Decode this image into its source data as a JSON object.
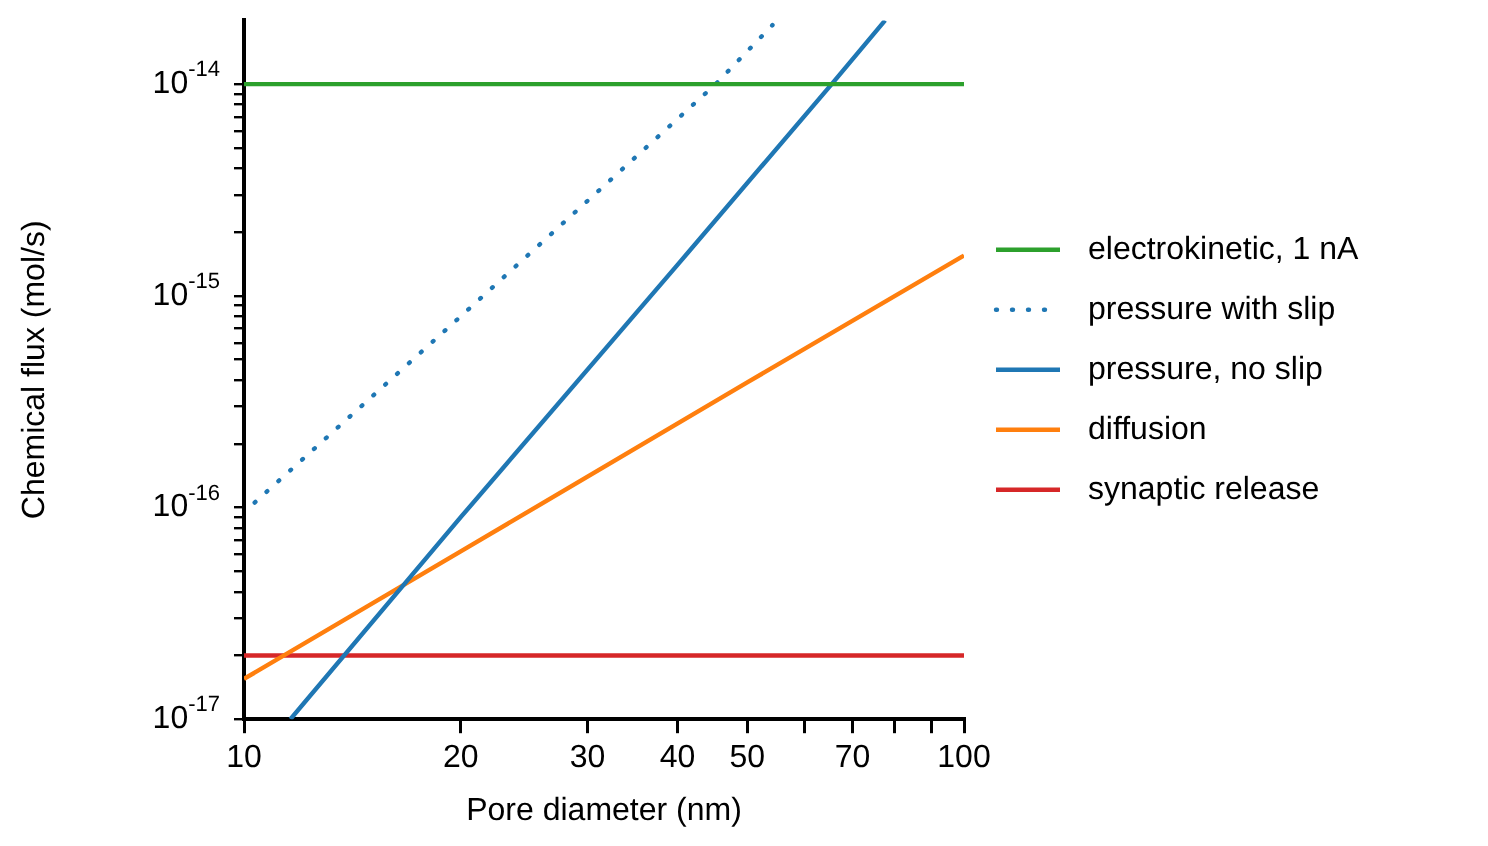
{
  "chart_data": {
    "type": "line",
    "xlabel": "Pore diameter (nm)",
    "ylabel": "Chemical flux (mol/s)",
    "log": "xy",
    "grid": false,
    "legend": "right",
    "marker": "none",
    "xlim": [
      10,
      100
    ],
    "ylim": [
      1e-17,
      2e-14
    ],
    "xticks": [
      10,
      20,
      30,
      40,
      50,
      {
        "value": 60,
        "label": null
      },
      70,
      {
        "value": 80,
        "label": null
      },
      {
        "value": 90,
        "label": null
      },
      100
    ],
    "yticks": [
      {
        "value": 1e-17,
        "label": "10$^{-17}$"
      },
      {
        "value": 2e-17,
        "label": null
      },
      {
        "value": 3e-17,
        "label": null
      },
      {
        "value": 4e-17,
        "label": null
      },
      {
        "value": 5e-17,
        "label": null
      },
      {
        "value": 6e-17,
        "label": null
      },
      {
        "value": 7e-17,
        "label": null
      },
      {
        "value": 8e-17,
        "label": null
      },
      {
        "value": 9e-17,
        "label": null
      },
      {
        "value": 1e-16,
        "label": "10$^{-16}$"
      },
      {
        "value": 2e-16,
        "label": null
      },
      {
        "value": 3e-16,
        "label": null
      },
      {
        "value": 4e-16,
        "label": null
      },
      {
        "value": 5e-16,
        "label": null
      },
      {
        "value": 6e-16,
        "label": null
      },
      {
        "value": 7e-16,
        "label": null
      },
      {
        "value": 8e-16,
        "label": null
      },
      {
        "value": 9e-16,
        "label": null
      },
      {
        "value": 1e-15,
        "label": "10$^{-15}$"
      },
      {
        "value": 2e-15,
        "label": null
      },
      {
        "value": 3e-15,
        "label": null
      },
      {
        "value": 4e-15,
        "label": null
      },
      {
        "value": 5e-15,
        "label": null
      },
      {
        "value": 6e-15,
        "label": null
      },
      {
        "value": 7e-15,
        "label": null
      },
      {
        "value": 8e-15,
        "label": null
      },
      {
        "value": 9e-15,
        "label": null
      },
      {
        "value": 1e-14,
        "label": "10$^{-14}$"
      }
    ],
    "series": [
      {
        "name": "electrokinetic, 1 nA",
        "color": "#2ca02c",
        "x": [
          10,
          100
        ],
        "values": [
          1e-14,
          1e-14
        ]
      },
      {
        "name": "pressure with slip",
        "color": "#1f77b4",
        "line_style": "dotted",
        "x": [
          10,
          20,
          45.2,
          54.2
        ],
        "values": [
          9.5e-17,
          8e-16,
          1e-14,
          1.9e-14
        ]
      },
      {
        "name": "pressure, no slip",
        "color": "#1f77b4",
        "x": [
          11.6,
          20,
          40,
          65.5,
          77.7
        ],
        "values": [
          1e-17,
          9e-17,
          1.4e-15,
          1e-14,
          2e-14
        ]
      },
      {
        "name": "diffusion",
        "color": "#ff7f0e",
        "x": [
          10,
          20,
          50,
          100
        ],
        "values": [
          1.55e-17,
          6.2e-17,
          3.9e-16,
          1.55e-15
        ]
      },
      {
        "name": "synaptic release",
        "color": "#d62728",
        "x": [
          10,
          100
        ],
        "values": [
          2e-17,
          2e-17
        ]
      }
    ]
  }
}
